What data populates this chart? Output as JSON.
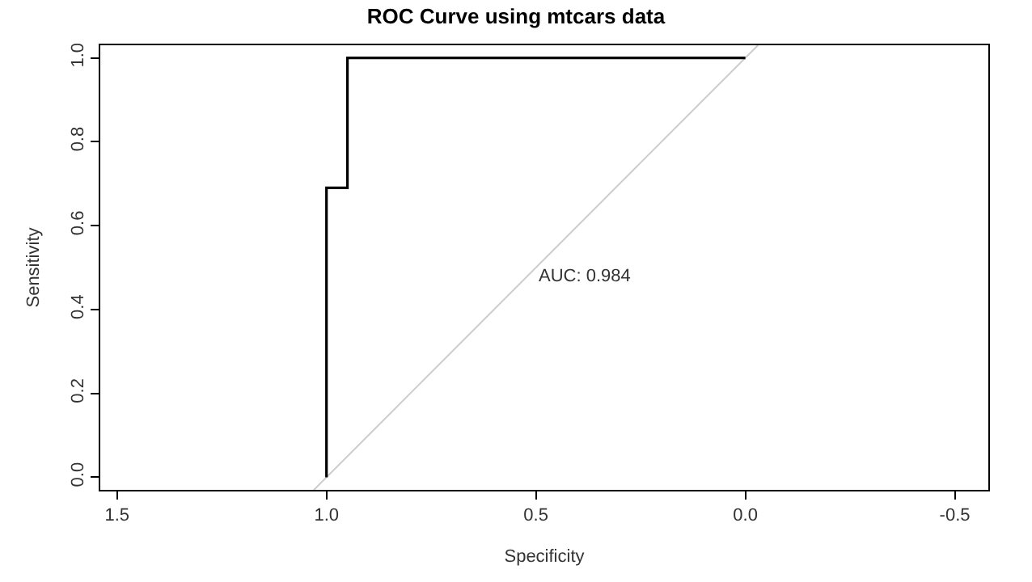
{
  "chart_data": {
    "type": "line",
    "title": "ROC Curve using mtcars data",
    "xlabel": "Specificity",
    "ylabel": "Sensitivity",
    "xlim": [
      1.54,
      -0.58
    ],
    "xticks": [
      {
        "value": 1.5,
        "label": "1.5"
      },
      {
        "value": 1.0,
        "label": "1.0"
      },
      {
        "value": 0.5,
        "label": "0.5"
      },
      {
        "value": 0.0,
        "label": "0.0"
      },
      {
        "value": -0.5,
        "label": "-0.5"
      }
    ],
    "ylim": [
      -0.03,
      1.03
    ],
    "yticks": [
      {
        "value": 0.0,
        "label": "0.0"
      },
      {
        "value": 0.2,
        "label": "0.2"
      },
      {
        "value": 0.4,
        "label": "0.4"
      },
      {
        "value": 0.6,
        "label": "0.6"
      },
      {
        "value": 0.8,
        "label": "0.8"
      },
      {
        "value": 1.0,
        "label": "1.0"
      }
    ],
    "series": [
      {
        "color": "#cccccc",
        "x": [
          1.03,
          -0.03
        ],
        "values": [
          -0.03,
          1.03
        ]
      },
      {
        "color": "#000000",
        "x": [
          1.0,
          1.0,
          0.95,
          0.95,
          0.0
        ],
        "values": [
          0.0,
          0.69,
          0.69,
          1.0,
          1.0
        ]
      }
    ],
    "annotations": [
      "AUC: 0.984"
    ],
    "marker": "none",
    "line_style": "solid"
  }
}
